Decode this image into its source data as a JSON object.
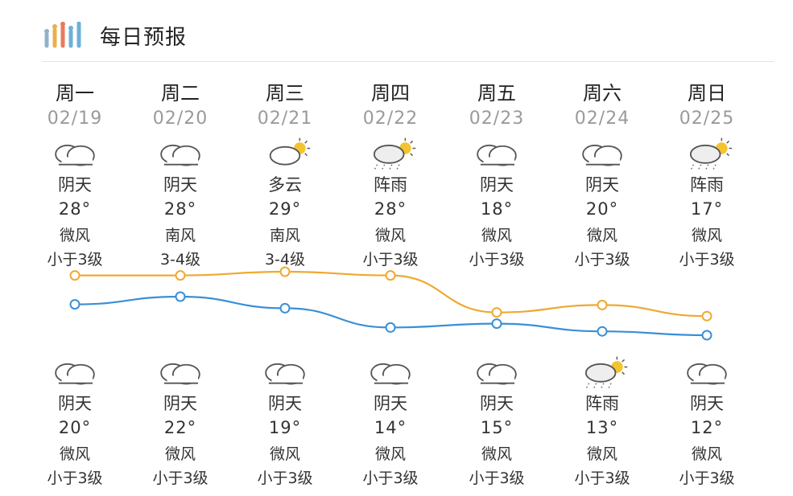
{
  "header": {
    "title": "每日预报",
    "icon": "bar-signal-icon"
  },
  "colors": {
    "high_line": "#f0a830",
    "low_line": "#3a8fd6"
  },
  "days": [
    {
      "day": "周一",
      "date": "02/19",
      "day_icon": "overcast-icon",
      "day_cond": "阴天",
      "high": "28°",
      "day_wind_dir": "微风",
      "day_wind_level": "小于3级",
      "night_icon": "overcast-icon",
      "night_cond": "阴天",
      "low": "20°",
      "night_wind_dir": "微风",
      "night_wind_level": "小于3级"
    },
    {
      "day": "周二",
      "date": "02/20",
      "day_icon": "overcast-icon",
      "day_cond": "阴天",
      "high": "28°",
      "day_wind_dir": "南风",
      "day_wind_level": "3-4级",
      "night_icon": "overcast-icon",
      "night_cond": "阴天",
      "low": "22°",
      "night_wind_dir": "微风",
      "night_wind_level": "小于3级"
    },
    {
      "day": "周三",
      "date": "02/21",
      "day_icon": "partly-cloudy-icon",
      "day_cond": "多云",
      "high": "29°",
      "day_wind_dir": "南风",
      "day_wind_level": "3-4级",
      "night_icon": "overcast-icon",
      "night_cond": "阴天",
      "low": "19°",
      "night_wind_dir": "微风",
      "night_wind_level": "小于3级"
    },
    {
      "day": "周四",
      "date": "02/22",
      "day_icon": "shower-icon",
      "day_cond": "阵雨",
      "high": "28°",
      "day_wind_dir": "微风",
      "day_wind_level": "小于3级",
      "night_icon": "overcast-icon",
      "night_cond": "阴天",
      "low": "14°",
      "night_wind_dir": "微风",
      "night_wind_level": "小于3级"
    },
    {
      "day": "周五",
      "date": "02/23",
      "day_icon": "overcast-icon",
      "day_cond": "阴天",
      "high": "18°",
      "day_wind_dir": "微风",
      "day_wind_level": "小于3级",
      "night_icon": "overcast-icon",
      "night_cond": "阴天",
      "low": "15°",
      "night_wind_dir": "微风",
      "night_wind_level": "小于3级"
    },
    {
      "day": "周六",
      "date": "02/24",
      "day_icon": "overcast-icon",
      "day_cond": "阴天",
      "high": "20°",
      "day_wind_dir": "微风",
      "day_wind_level": "小于3级",
      "night_icon": "shower-icon",
      "night_cond": "阵雨",
      "low": "13°",
      "night_wind_dir": "微风",
      "night_wind_level": "小于3级"
    },
    {
      "day": "周日",
      "date": "02/25",
      "day_icon": "shower-icon",
      "day_cond": "阵雨",
      "high": "17°",
      "day_wind_dir": "微风",
      "day_wind_level": "小于3级",
      "night_icon": "overcast-icon",
      "night_cond": "阴天",
      "low": "12°",
      "night_wind_dir": "微风",
      "night_wind_level": "小于3级"
    }
  ]
}
